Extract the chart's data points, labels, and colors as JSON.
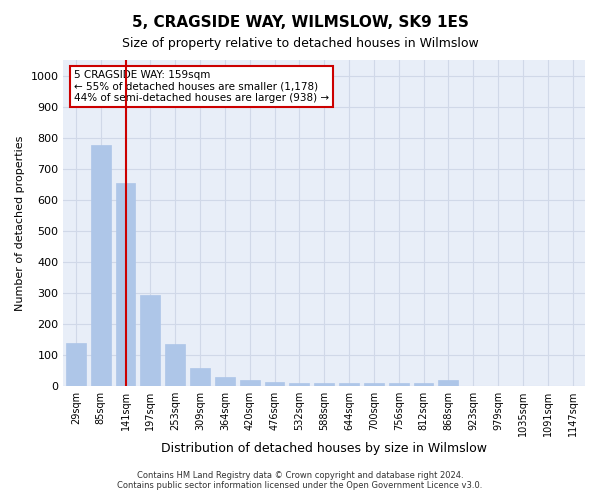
{
  "title": "5, CRAGSIDE WAY, WILMSLOW, SK9 1ES",
  "subtitle": "Size of property relative to detached houses in Wilmslow",
  "xlabel": "Distribution of detached houses by size in Wilmslow",
  "ylabel": "Number of detached properties",
  "categories": [
    "29sqm",
    "85sqm",
    "141sqm",
    "197sqm",
    "253sqm",
    "309sqm",
    "364sqm",
    "420sqm",
    "476sqm",
    "532sqm",
    "588sqm",
    "644sqm",
    "700sqm",
    "756sqm",
    "812sqm",
    "868sqm",
    "923sqm",
    "979sqm",
    "1035sqm",
    "1091sqm",
    "1147sqm"
  ],
  "values": [
    140,
    775,
    655,
    293,
    137,
    57,
    30,
    20,
    15,
    10,
    10,
    10,
    10,
    10,
    10,
    20,
    0,
    0,
    0,
    0,
    0
  ],
  "bar_color": "#aec6e8",
  "bar_edge_color": "#aec6e8",
  "marker_index": 2,
  "marker_color": "#cc0000",
  "ylim": [
    0,
    1050
  ],
  "yticks": [
    0,
    100,
    200,
    300,
    400,
    500,
    600,
    700,
    800,
    900,
    1000
  ],
  "annotation_title": "5 CRAGSIDE WAY: 159sqm",
  "annotation_line1": "← 55% of detached houses are smaller (1,178)",
  "annotation_line2": "44% of semi-detached houses are larger (938) →",
  "footer1": "Contains HM Land Registry data © Crown copyright and database right 2024.",
  "footer2": "Contains public sector information licensed under the Open Government Licence v3.0.",
  "background_color": "#ffffff",
  "grid_color": "#d0d8e8"
}
